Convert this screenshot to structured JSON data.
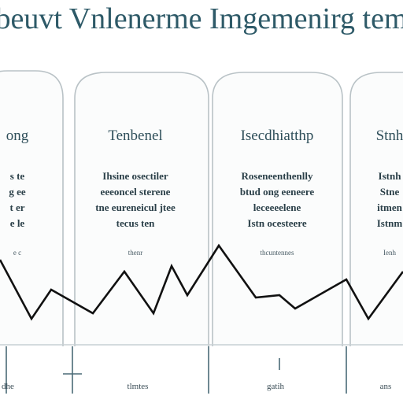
{
  "header": {
    "title": "beuvt Vnlenerme Imgemenirg tem"
  },
  "panels": [
    {
      "heading": "ong",
      "lines": [
        "s te",
        "g ee",
        "t er",
        "e le"
      ],
      "note": "e c"
    },
    {
      "heading": "Tenbenel",
      "lines": [
        "Ihsine osectiler",
        "eeeoncel sterene",
        "tne eureneicul jtee",
        "tecus ten"
      ],
      "note": "thenr"
    },
    {
      "heading": "Isecdhiatthp",
      "lines": [
        "Roseneenthenlly",
        "btud ong eeneere",
        "leceeeelene",
        "Istn ocesteere"
      ],
      "note": "thcuntennes"
    },
    {
      "heading": "Stnh",
      "lines": [
        "Istnh",
        "Stne",
        "itmen",
        "Istnm"
      ],
      "note": "Ienh"
    }
  ],
  "footer": {
    "labels": [
      "dhe",
      "tlmtes",
      "gatih",
      "ans"
    ]
  }
}
